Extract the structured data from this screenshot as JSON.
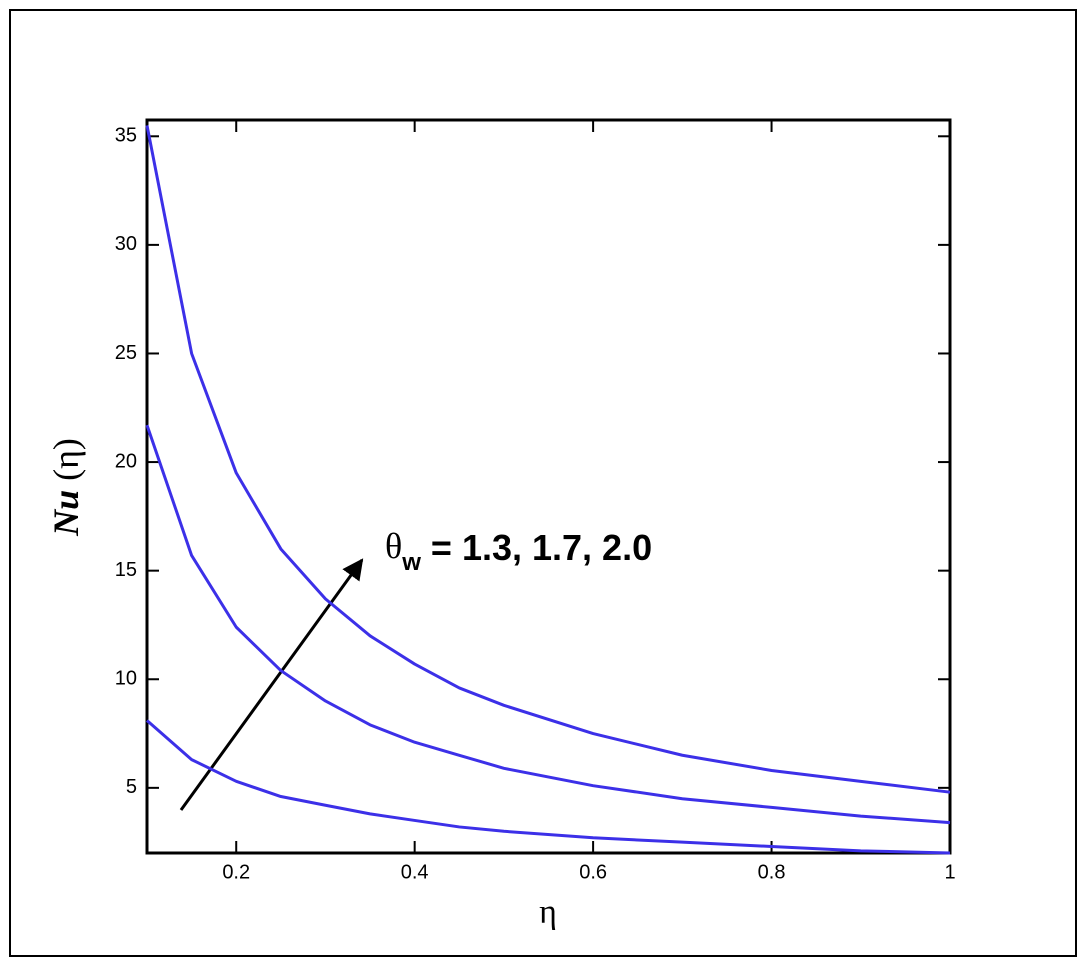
{
  "chart_data": {
    "type": "line",
    "xlabel": "η",
    "ylabel": {
      "main": "Nu",
      "rest": "(η)"
    },
    "annotation": {
      "symbol": "θ",
      "subscript": "w",
      "text": "= 1.3, 1.7, 2.0"
    },
    "x": [
      0.1,
      0.15,
      0.2,
      0.25,
      0.3,
      0.35,
      0.4,
      0.45,
      0.5,
      0.6,
      0.7,
      0.8,
      0.9,
      1
    ],
    "series": [
      {
        "color": "#3c30e8",
        "values": [
          8.1,
          6.3,
          5.3,
          4.6,
          4.2,
          3.8,
          3.5,
          3.2,
          3.0,
          2.7,
          2.5,
          2.3,
          2.1,
          2.0
        ]
      },
      {
        "color": "#3c30e8",
        "values": [
          21.7,
          15.7,
          12.4,
          10.4,
          9.0,
          7.9,
          7.1,
          6.5,
          5.9,
          5.1,
          4.5,
          4.1,
          3.7,
          3.4
        ]
      },
      {
        "color": "#3c30e8",
        "values": [
          35.5,
          25.0,
          19.5,
          16.0,
          13.7,
          12.0,
          10.7,
          9.6,
          8.8,
          7.5,
          6.5,
          5.8,
          5.3,
          4.8
        ]
      }
    ],
    "xlim": [
      0.1,
      1
    ],
    "ylim": [
      2,
      35.75
    ],
    "xticks": [
      0.2,
      0.4,
      0.6,
      0.8,
      1
    ],
    "yticks": [
      5,
      10,
      15,
      20,
      25,
      30,
      35
    ]
  }
}
